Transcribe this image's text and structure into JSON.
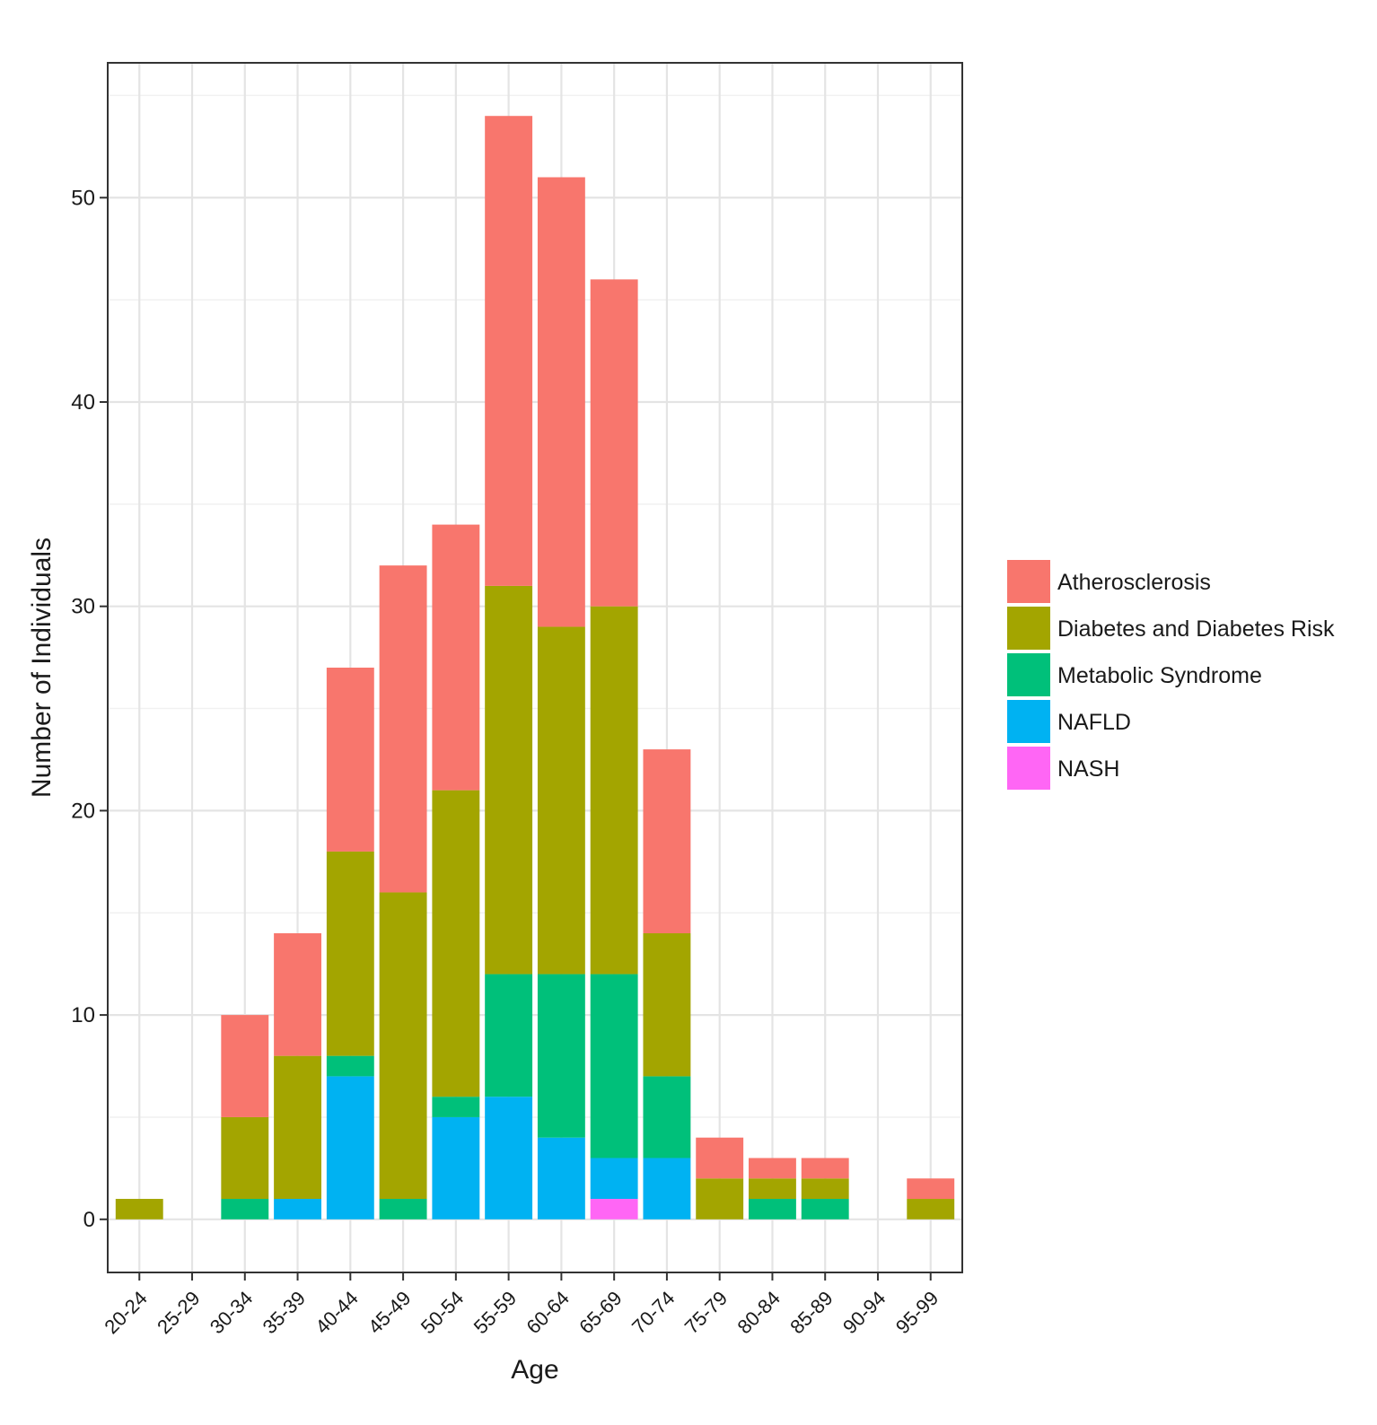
{
  "chart_data": {
    "type": "bar",
    "stacked": true,
    "title": "",
    "xlabel": "Age",
    "ylabel": "Number of Individuals",
    "ylim": [
      -2.6,
      56.6
    ],
    "yticks": [
      0,
      10,
      20,
      30,
      40,
      50
    ],
    "grid": true,
    "legend_position": "right",
    "categories": [
      "20-24",
      "25-29",
      "30-34",
      "35-39",
      "40-44",
      "45-49",
      "50-54",
      "55-59",
      "60-64",
      "65-69",
      "70-74",
      "75-79",
      "80-84",
      "85-89",
      "90-94",
      "95-99"
    ],
    "series": [
      {
        "name": "NASH",
        "color": "#FF66F5",
        "values": [
          0,
          0,
          0,
          0,
          0,
          0,
          0,
          0,
          0,
          1,
          0,
          0,
          0,
          0,
          0,
          0
        ]
      },
      {
        "name": "NAFLD",
        "color": "#00B2F2",
        "values": [
          0,
          0,
          0,
          1,
          7,
          0,
          5,
          6,
          4,
          2,
          3,
          0,
          0,
          0,
          0,
          0
        ]
      },
      {
        "name": "Metabolic Syndrome",
        "color": "#00C07A",
        "values": [
          0,
          0,
          1,
          0,
          1,
          1,
          1,
          6,
          8,
          9,
          4,
          0,
          1,
          1,
          0,
          0
        ]
      },
      {
        "name": "Diabetes and Diabetes Risk",
        "color": "#A3A500",
        "values": [
          1,
          0,
          4,
          7,
          10,
          15,
          15,
          19,
          17,
          18,
          7,
          2,
          1,
          1,
          0,
          1
        ]
      },
      {
        "name": "Atherosclerosis",
        "color": "#F8766D",
        "values": [
          0,
          0,
          5,
          6,
          9,
          16,
          13,
          23,
          22,
          16,
          9,
          2,
          1,
          1,
          0,
          1
        ]
      }
    ],
    "legend_order": [
      "Atherosclerosis",
      "Diabetes and Diabetes Risk",
      "Metabolic Syndrome",
      "NAFLD",
      "NASH"
    ]
  }
}
